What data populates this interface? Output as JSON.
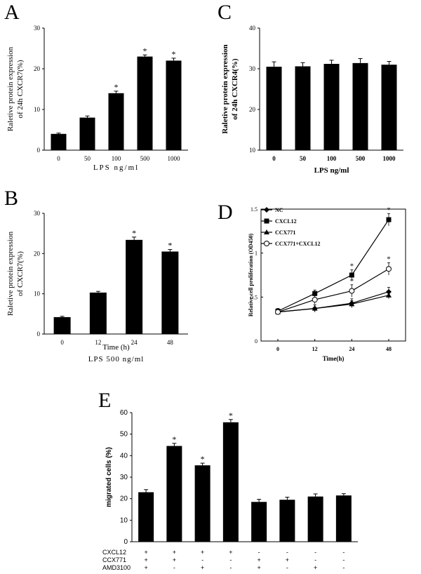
{
  "chart_data": [
    {
      "panel": "A",
      "type": "bar",
      "categories": [
        "0",
        "50",
        "100",
        "500",
        "1000"
      ],
      "values": [
        4,
        8,
        14,
        23,
        22
      ],
      "errors": [
        0.2,
        0.4,
        0.5,
        0.4,
        0.6
      ],
      "significant": [
        false,
        false,
        true,
        true,
        true
      ],
      "xlabel": "LPS ng/ml",
      "ylabel": [
        "Raletive protein expression",
        "of 24h CXCR7(%)"
      ],
      "ylim": [
        0,
        30
      ],
      "yticks": [
        "0",
        "10",
        "20",
        "30"
      ]
    },
    {
      "panel": "C",
      "type": "bar",
      "categories": [
        "0",
        "50",
        "100",
        "500",
        "1000"
      ],
      "values": [
        30.5,
        30.6,
        31.2,
        31.4,
        31.0
      ],
      "errors": [
        1.2,
        0.9,
        0.9,
        1.1,
        0.8
      ],
      "significant": [
        false,
        false,
        false,
        false,
        false
      ],
      "xlabel": "LPS ng/ml",
      "ylabel": [
        "Raletive protein expression",
        "of 24h CXCR4(%)"
      ],
      "ylim": [
        10,
        40
      ],
      "yticks": [
        "10",
        "20",
        "30",
        "40"
      ]
    },
    {
      "panel": "B",
      "type": "bar",
      "categories": [
        "0",
        "12",
        "24",
        "48"
      ],
      "values": [
        4.2,
        10.3,
        23.4,
        20.5
      ],
      "errors": [
        0.2,
        0.3,
        0.7,
        0.5
      ],
      "significant": [
        false,
        false,
        true,
        true
      ],
      "xlabel": "Time (h)",
      "xlabel2": "LPS 500 ng/ml",
      "ylabel": [
        "Raletive protein expression",
        "of CXCR7(%)"
      ],
      "ylim": [
        0,
        30
      ],
      "yticks": [
        "0",
        "10",
        "20",
        "30"
      ]
    },
    {
      "panel": "D",
      "type": "line",
      "x": [
        "0",
        "12",
        "24",
        "48"
      ],
      "series": [
        {
          "name": "NC",
          "marker": "diamond",
          "values": [
            0.33,
            0.37,
            0.43,
            0.56
          ],
          "errors": [
            0.03,
            0.04,
            0.05,
            0.05
          ]
        },
        {
          "name": "CXCL12",
          "marker": "square",
          "values": [
            0.34,
            0.54,
            0.75,
            1.38
          ],
          "errors": [
            0.03,
            0.04,
            0.06,
            0.07
          ]
        },
        {
          "name": "CCX771",
          "marker": "triangle",
          "values": [
            0.33,
            0.37,
            0.42,
            0.52
          ],
          "errors": [
            0.03,
            0.04,
            0.04,
            0.04
          ]
        },
        {
          "name": "CCX771+CXCL12",
          "marker": "open-circle",
          "values": [
            0.33,
            0.47,
            0.57,
            0.82
          ],
          "errors": [
            0.03,
            0.05,
            0.07,
            0.07
          ]
        }
      ],
      "significant_points": [
        {
          "x": "24",
          "series": "CXCL12"
        },
        {
          "x": "48",
          "series": "CXCL12"
        },
        {
          "x": "24",
          "series": "CCX771+CXCL12"
        },
        {
          "x": "48",
          "series": "CCX771+CXCL12"
        }
      ],
      "xlabel": "Time(h)",
      "ylabel": "Relative cell proliferation (OD450)",
      "ylim": [
        0,
        1.5
      ],
      "yticks": [
        "0",
        "0.5",
        "1",
        "1.5"
      ],
      "legend": "top-left"
    },
    {
      "panel": "E",
      "type": "bar",
      "categories": [
        "1",
        "2",
        "3",
        "4",
        "5",
        "6",
        "7",
        "8"
      ],
      "values": [
        23,
        44.5,
        35.5,
        55.5,
        18.5,
        19.5,
        21,
        21.5
      ],
      "errors": [
        1.2,
        1.2,
        1.0,
        1.3,
        1.2,
        1.2,
        1.2,
        0.8
      ],
      "significant": [
        false,
        true,
        true,
        true,
        false,
        false,
        false,
        false
      ],
      "ylabel": "migrated cells (%)",
      "ylim": [
        0,
        60
      ],
      "yticks": [
        "0",
        "10",
        "20",
        "30",
        "40",
        "50",
        "60"
      ],
      "treatment_table": {
        "rows": [
          "CXCL12",
          "CCX771",
          "AMD3100"
        ],
        "signs": [
          [
            "+",
            "+",
            "+",
            "+",
            "-",
            "-",
            "-",
            "-"
          ],
          [
            "+",
            "+",
            "-",
            "-",
            "+",
            "+",
            "-",
            "-"
          ],
          [
            "+",
            "-",
            "+",
            "-",
            "+",
            "-",
            "+",
            "-"
          ]
        ]
      }
    }
  ],
  "significance_mark": "*"
}
